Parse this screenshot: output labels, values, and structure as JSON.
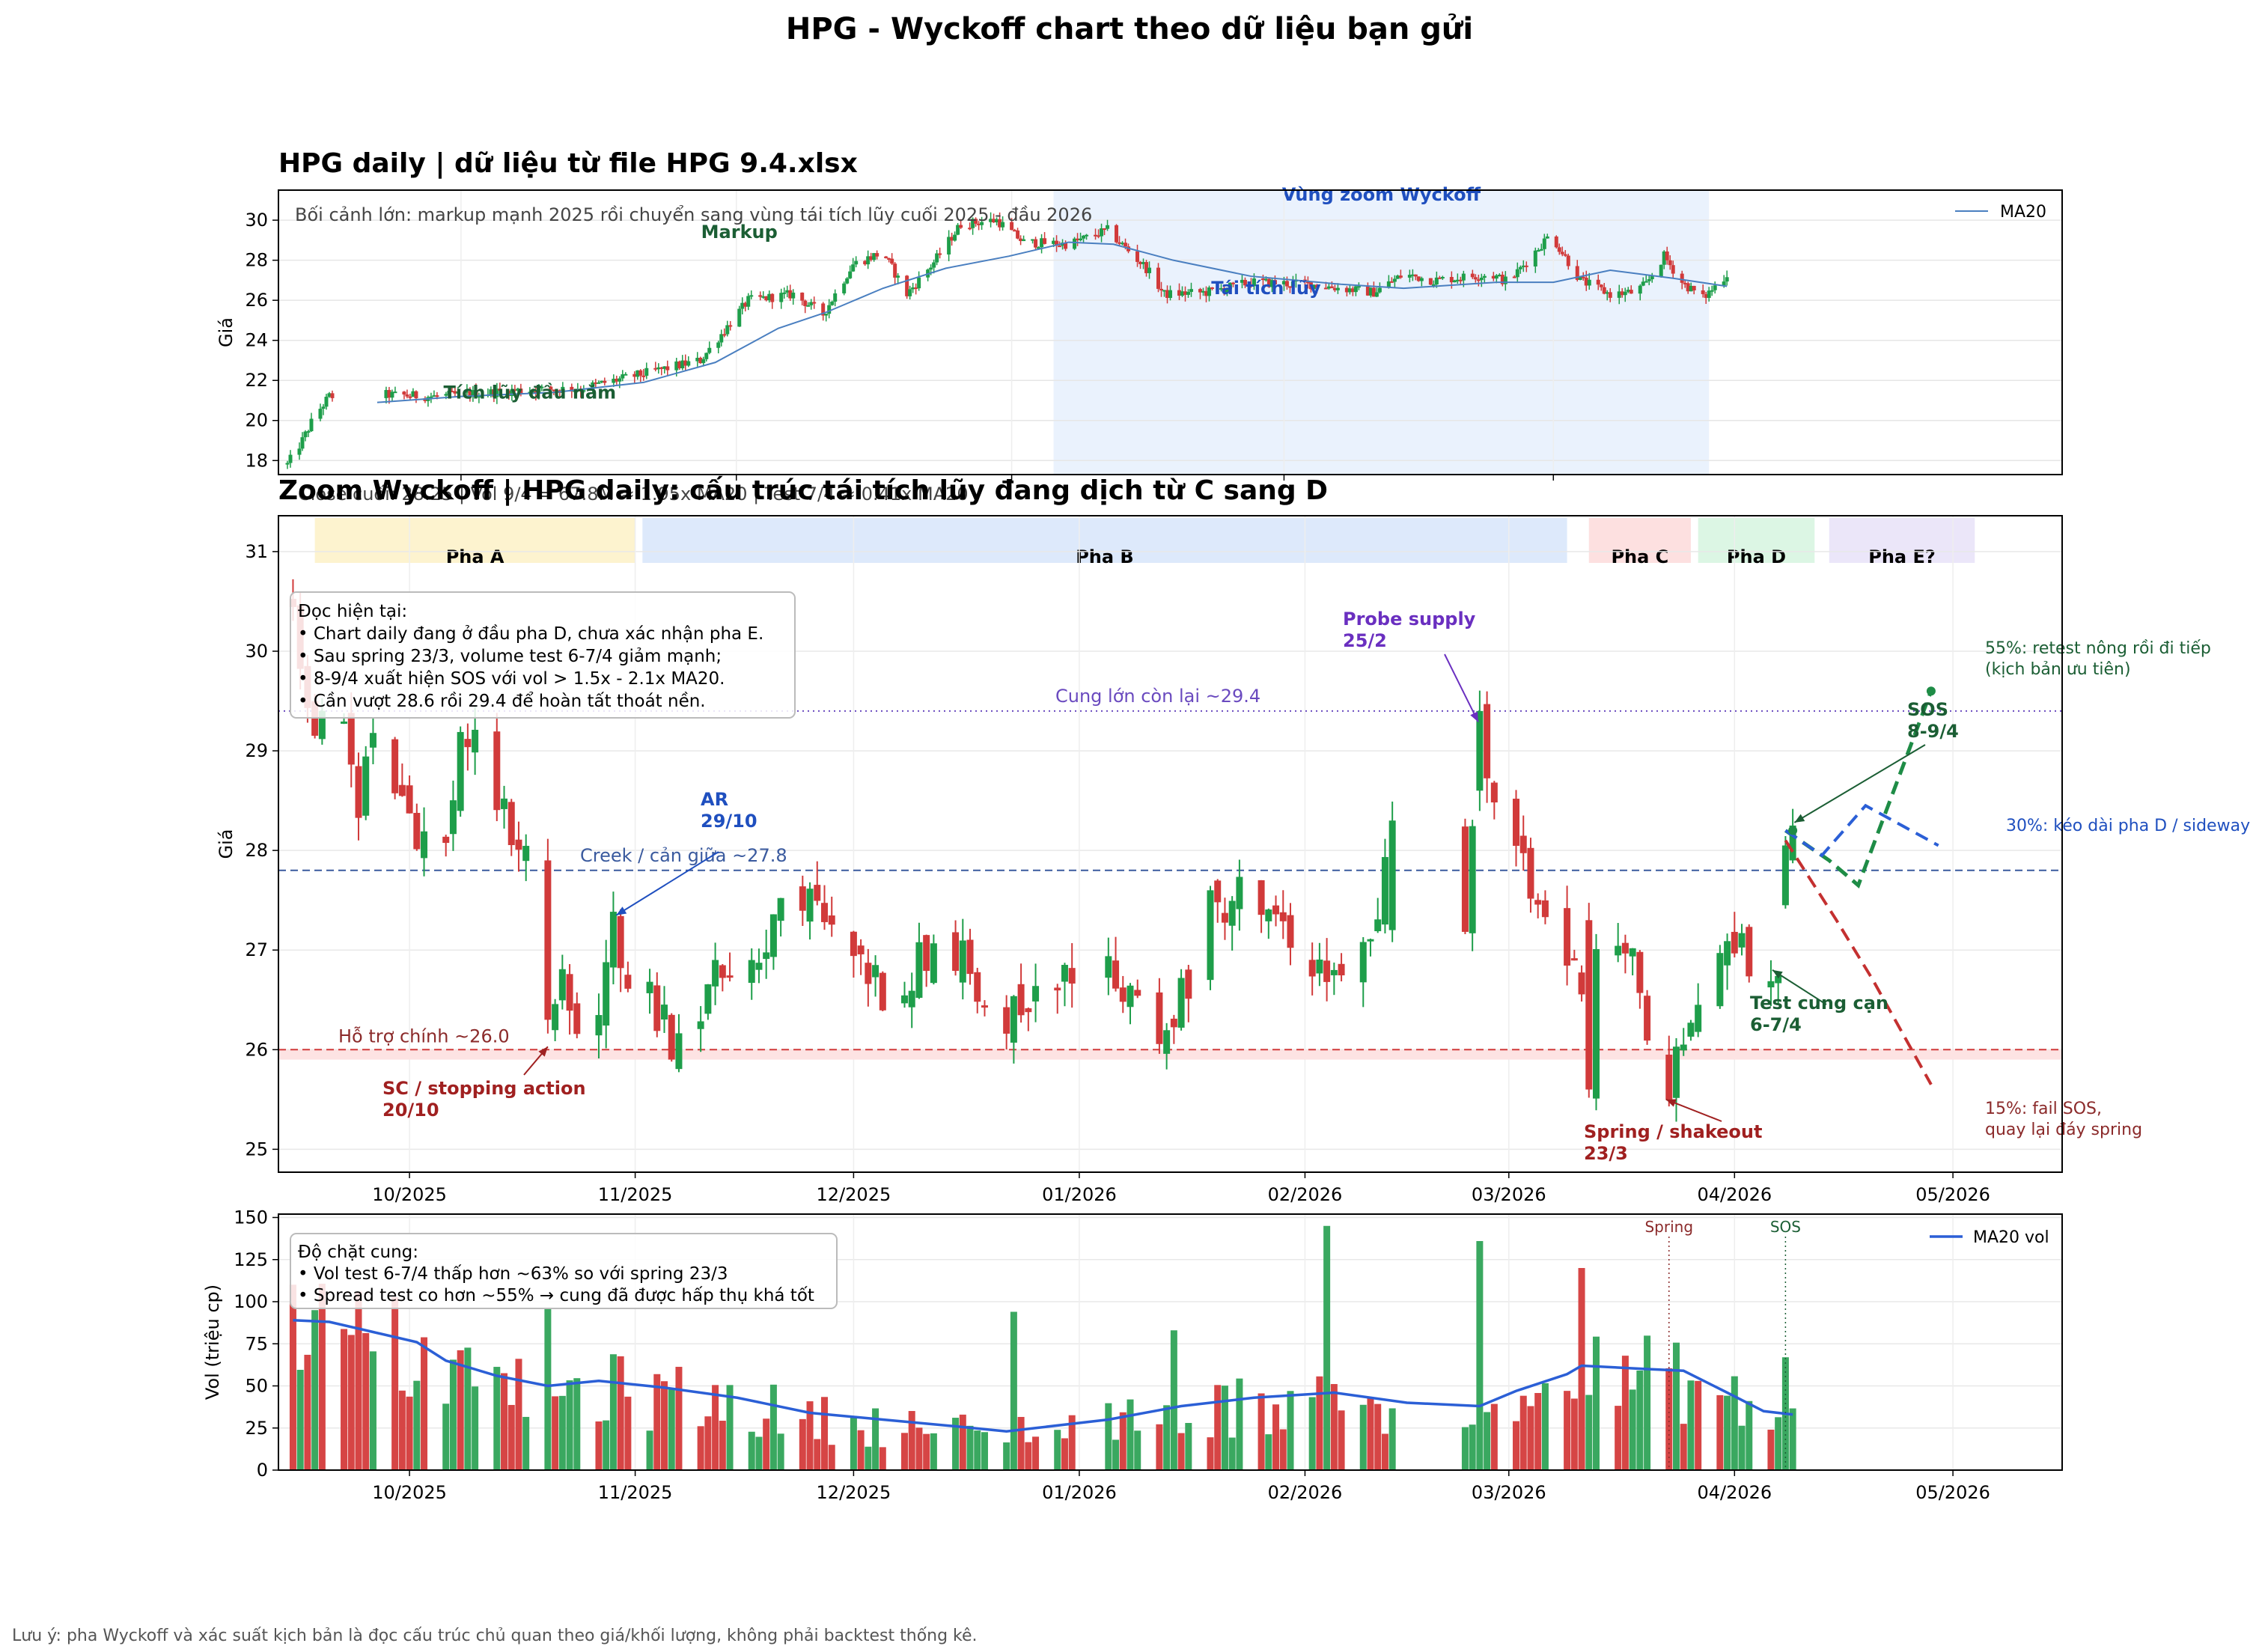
{
  "page": {
    "title": "HPG - Wyckoff chart theo dữ liệu bạn gửi",
    "footer": "Lưu ý: pha Wyckoff và xác suất kịch bản là đọc cấu trúc chủ quan theo giá/khối lượng, không phải backtest thống kê."
  },
  "colors": {
    "up": "#1e9e4a",
    "down": "#d13a3a",
    "ma": "#4a7fc0",
    "ma_vol": "#2b5fd6",
    "zoom_region": "#eaf2fd",
    "phase_a": "#fdf3cf",
    "phase_b": "#dde9fb",
    "phase_c": "#fde0e0",
    "phase_d": "#dcf6e4",
    "phase_e": "#ebe6f9",
    "support": "#d13a3a",
    "creek": "#3a5a9e",
    "supply": "#6a4abf",
    "green_label": "#1b5e34",
    "blue_label": "#1f4fbf",
    "red_label": "#a02020",
    "purple_label": "#6a2fc0"
  },
  "chart_data": [
    {
      "type": "candlestick",
      "id": "overview",
      "title": "HPG daily | dữ liệu từ file HPG 9.4.xlsx",
      "ylabel": "Giá",
      "ylim": [
        17.3,
        31.5
      ],
      "yticks": [
        18,
        20,
        22,
        24,
        26,
        28,
        30
      ],
      "x_range": [
        "2025-01-02",
        "2026-04-28"
      ],
      "grid": true,
      "legend": {
        "entries": [
          "MA20"
        ],
        "placement": "top-right"
      },
      "context_note": "Bối cảnh lớn: markup mạnh 2025 rồi chuyển sang vùng tái tích lũy cuối 2025 - đầu 2026",
      "zoom_region": {
        "label": "Vùng zoom Wyckoff",
        "start": "2025-09-15",
        "end": "2026-04-22"
      },
      "annotations": [
        {
          "text": "Tích lũy đầu năm",
          "date": "2025-03-24",
          "price": 21.1
        },
        {
          "text": "Markup",
          "date": "2025-06-02",
          "price": 29.1
        },
        {
          "text": "Tái tích lũy",
          "date": "2025-11-25",
          "price": 26.3
        }
      ],
      "path": [
        [
          "2025-01-02",
          17.8
        ],
        [
          "2025-01-07",
          19.0
        ],
        [
          "2025-01-11",
          20.2
        ],
        [
          "2025-01-16",
          21.2
        ],
        [
          "2025-02-01",
          21.3
        ],
        [
          "2025-02-20",
          21.2
        ],
        [
          "2025-03-20",
          21.5
        ],
        [
          "2025-04-10",
          21.6
        ],
        [
          "2025-04-30",
          22.3
        ],
        [
          "2025-05-20",
          23.0
        ],
        [
          "2025-05-28",
          24.5
        ],
        [
          "2025-06-05",
          26.0
        ],
        [
          "2025-06-20",
          26.3
        ],
        [
          "2025-06-30",
          25.3
        ],
        [
          "2025-07-10",
          27.8
        ],
        [
          "2025-07-20",
          28.4
        ],
        [
          "2025-07-28",
          26.3
        ],
        [
          "2025-08-06",
          27.9
        ],
        [
          "2025-08-15",
          29.8
        ],
        [
          "2025-08-27",
          30.0
        ],
        [
          "2025-09-05",
          28.9
        ],
        [
          "2025-09-20",
          28.8
        ],
        [
          "2025-10-03",
          29.5
        ],
        [
          "2025-10-16",
          27.6
        ],
        [
          "2025-10-22",
          26.3
        ],
        [
          "2025-11-05",
          26.4
        ],
        [
          "2025-11-20",
          26.9
        ],
        [
          "2025-12-10",
          26.8
        ],
        [
          "2025-12-20",
          26.6
        ],
        [
          "2025-12-31",
          26.4
        ],
        [
          "2026-01-10",
          27.3
        ],
        [
          "2026-01-20",
          27.0
        ],
        [
          "2026-02-08",
          27.3
        ],
        [
          "2026-02-14",
          26.9
        ],
        [
          "2026-02-28",
          29.3
        ],
        [
          "2026-03-10",
          27.0
        ],
        [
          "2026-03-20",
          26.3
        ],
        [
          "2026-03-28",
          26.4
        ],
        [
          "2026-04-01",
          26.8
        ],
        [
          "2026-04-07",
          28.2
        ],
        [
          "2026-04-13",
          26.9
        ],
        [
          "2026-04-20",
          26.1
        ],
        [
          "2026-04-28",
          27.3
        ]
      ],
      "ma_path": [
        [
          "2025-02-01",
          20.9
        ],
        [
          "2025-03-01",
          21.2
        ],
        [
          "2025-04-01",
          21.4
        ],
        [
          "2025-05-01",
          21.9
        ],
        [
          "2025-05-25",
          22.9
        ],
        [
          "2025-06-15",
          24.6
        ],
        [
          "2025-07-01",
          25.4
        ],
        [
          "2025-07-20",
          26.6
        ],
        [
          "2025-08-10",
          27.6
        ],
        [
          "2025-08-31",
          28.2
        ],
        [
          "2025-09-20",
          28.9
        ],
        [
          "2025-10-05",
          28.8
        ],
        [
          "2025-10-25",
          28.0
        ],
        [
          "2025-11-20",
          27.2
        ],
        [
          "2025-12-20",
          26.8
        ],
        [
          "2026-01-10",
          26.6
        ],
        [
          "2026-02-10",
          26.9
        ],
        [
          "2026-03-01",
          26.9
        ],
        [
          "2026-03-20",
          27.5
        ],
        [
          "2026-04-10",
          27.1
        ],
        [
          "2026-04-28",
          26.7
        ]
      ]
    },
    {
      "type": "candlestick",
      "id": "zoom",
      "title": "Zoom Wyckoff | HPG daily: cấu trúc tái tích lũy đang dịch từ C sang D",
      "subtitle": "Close cuối: 28.25 | Vol 9/4 = 67.8M ≈ 1.95x MA20 | Test 7/4 ≈ 0.41x MA20",
      "ylabel": "Giá",
      "ylim": [
        24.77,
        31.36
      ],
      "yticks": [
        25,
        26,
        27,
        28,
        29,
        30,
        31
      ],
      "xticks": [
        "10/2025",
        "11/2025",
        "12/2025",
        "01/2026",
        "02/2026",
        "03/2026",
        "04/2026",
        "05/2026"
      ],
      "xtick_dates": [
        "2025-10-01",
        "2025-11-01",
        "2025-12-01",
        "2026-01-01",
        "2026-02-01",
        "2026-03-01",
        "2026-04-01",
        "2026-05-01"
      ],
      "x_range": [
        "2025-09-13",
        "2026-05-04"
      ],
      "grid": true,
      "phases": [
        {
          "label": "Pha A",
          "start": "2025-09-18",
          "end": "2025-11-01"
        },
        {
          "label": "Pha B",
          "start": "2025-11-02",
          "end": "2026-03-09"
        },
        {
          "label": "Pha C",
          "start": "2026-03-12",
          "end": "2026-03-26"
        },
        {
          "label": "Pha D",
          "start": "2026-03-27",
          "end": "2026-04-12"
        },
        {
          "label": "Pha E?",
          "start": "2026-04-14",
          "end": "2026-05-04"
        }
      ],
      "levels": [
        {
          "label": "Hỗ trợ chính ~26.0",
          "price": 26.0,
          "kind": "support"
        },
        {
          "label": "Creek / cản giữa ~27.8",
          "price": 27.8,
          "kind": "creek"
        },
        {
          "label": "Cung lớn còn lại ~29.4",
          "price": 29.4,
          "kind": "supply"
        }
      ],
      "reading_box": [
        "Đọc hiện tại:",
        "• Chart daily đang ở đầu pha D, chưa xác nhận pha E.",
        "• Sau spring 23/3, volume test 6-7/4 giảm mạnh;",
        "• 8-9/4 xuất hiện SOS với vol > 1.5x - 2.1x MA20.",
        "• Cần vượt 28.6 rồi 29.4 để hoàn tất thoát nền."
      ],
      "events": [
        {
          "label": "SC / stopping action",
          "date_label": "20/10",
          "date": "2025-10-20",
          "price": 26.0
        },
        {
          "label": "AR",
          "date_label": "29/10",
          "date": "2025-10-29",
          "price": 27.35
        },
        {
          "label": "Probe supply",
          "date_label": "25/2",
          "date": "2026-02-25",
          "price": 29.32
        },
        {
          "label": "Spring / shakeout",
          "date_label": "23/3",
          "date": "2026-03-23",
          "price": 25.5
        },
        {
          "label": "Test cung cạn",
          "date_label": "6-7/4",
          "date": "2026-04-06",
          "price": 26.8
        },
        {
          "label": "SOS",
          "date_label": "8-9/4",
          "date": "2026-04-08",
          "price": 28.25
        }
      ],
      "scenarios": [
        {
          "label": "55%: retest nông rồi đi tiếp (kịch bản ưu tiên)",
          "probability": 55,
          "path": [
            [
              "2026-04-08",
              28.2
            ],
            [
              "2026-04-14",
              27.9
            ],
            [
              "2026-04-18",
              27.65
            ],
            [
              "2026-04-28",
              29.6
            ]
          ]
        },
        {
          "label": "30%: kéo dài pha D / sideway",
          "probability": 30,
          "path": [
            [
              "2026-04-08",
              28.2
            ],
            [
              "2026-04-13",
              27.95
            ],
            [
              "2026-04-19",
              28.45
            ],
            [
              "2026-04-29",
              28.05
            ]
          ]
        },
        {
          "label": "15%: fail SOS, quay lại đáy spring",
          "probability": 15,
          "path": [
            [
              "2026-04-08",
              28.1
            ],
            [
              "2026-04-15",
              27.3
            ],
            [
              "2026-04-20",
              26.7
            ],
            [
              "2026-04-28",
              25.65
            ]
          ]
        }
      ],
      "path": [
        [
          "2025-09-15",
          30.5
        ],
        [
          "2025-09-17",
          29.3
        ],
        [
          "2025-09-22",
          29.1
        ],
        [
          "2025-09-24",
          28.5
        ],
        [
          "2025-09-26",
          29.2
        ],
        [
          "2025-09-30",
          28.6
        ],
        [
          "2025-10-02",
          28.2
        ],
        [
          "2025-10-06",
          28.0
        ],
        [
          "2025-10-08",
          29.2
        ],
        [
          "2025-10-10",
          29.0
        ],
        [
          "2025-10-13",
          28.5
        ],
        [
          "2025-10-15",
          28.2
        ],
        [
          "2025-10-17",
          28.0
        ],
        [
          "2025-10-20",
          26.4
        ],
        [
          "2025-10-22",
          26.6
        ],
        [
          "2025-10-24",
          26.2
        ],
        [
          "2025-10-27",
          26.5
        ],
        [
          "2025-10-29",
          27.2
        ],
        [
          "2025-10-31",
          26.8
        ],
        [
          "2025-11-04",
          26.4
        ],
        [
          "2025-11-06",
          26.1
        ],
        [
          "2025-11-10",
          26.5
        ],
        [
          "2025-11-13",
          26.8
        ],
        [
          "2025-11-17",
          26.9
        ],
        [
          "2025-11-20",
          27.3
        ],
        [
          "2025-11-24",
          27.5
        ],
        [
          "2025-11-28",
          27.2
        ],
        [
          "2025-12-03",
          26.8
        ],
        [
          "2025-12-06",
          26.5
        ],
        [
          "2025-12-10",
          26.9
        ],
        [
          "2025-12-14",
          27.1
        ],
        [
          "2025-12-18",
          26.7
        ],
        [
          "2025-12-22",
          26.3
        ],
        [
          "2025-12-27",
          26.7
        ],
        [
          "2026-01-02",
          26.8
        ],
        [
          "2026-01-06",
          26.7
        ],
        [
          "2026-01-09",
          26.5
        ],
        [
          "2026-01-12",
          26.1
        ],
        [
          "2026-01-15",
          26.5
        ],
        [
          "2026-01-19",
          27.3
        ],
        [
          "2026-01-23",
          27.6
        ],
        [
          "2026-01-28",
          27.2
        ],
        [
          "2026-02-02",
          26.9
        ],
        [
          "2026-02-06",
          26.6
        ],
        [
          "2026-02-10",
          27.0
        ],
        [
          "2026-02-13",
          28.1
        ],
        [
          "2026-02-17",
          26.9
        ],
        [
          "2026-02-20",
          27.1
        ],
        [
          "2026-02-23",
          27.4
        ],
        [
          "2026-02-25",
          29.3
        ],
        [
          "2026-02-27",
          28.5
        ],
        [
          "2026-03-02",
          28.0
        ],
        [
          "2026-03-04",
          27.5
        ],
        [
          "2026-03-06",
          27.3
        ],
        [
          "2026-03-09",
          26.9
        ],
        [
          "2026-03-11",
          26.7
        ],
        [
          "2026-03-13",
          26.9
        ],
        [
          "2026-03-16",
          27.1
        ],
        [
          "2026-03-18",
          26.8
        ],
        [
          "2026-03-20",
          26.2
        ],
        [
          "2026-03-23",
          25.55
        ],
        [
          "2026-03-25",
          26.1
        ],
        [
          "2026-03-27",
          26.5
        ],
        [
          "2026-03-31",
          26.9
        ],
        [
          "2026-04-02",
          27.2
        ],
        [
          "2026-04-03",
          26.9
        ],
        [
          "2026-04-06",
          26.85
        ],
        [
          "2026-04-07",
          26.8
        ],
        [
          "2026-04-08",
          27.8
        ],
        [
          "2026-04-09",
          28.25
        ]
      ]
    },
    {
      "type": "bar",
      "id": "volume",
      "title": "",
      "ylabel": "Vol (triệu cp)",
      "ylim": [
        0,
        152
      ],
      "yticks": [
        0,
        25,
        50,
        75,
        100,
        125,
        150
      ],
      "xticks": [
        "10/2025",
        "11/2025",
        "12/2025",
        "01/2026",
        "02/2026",
        "03/2026",
        "04/2026",
        "05/2026"
      ],
      "legend": {
        "entries": [
          "MA20 vol"
        ],
        "placement": "top-right"
      },
      "note_box": [
        "Độ chặt cung:",
        "• Vol test 6-7/4 thấp hơn ~63% so với spring 23/3",
        "• Spread test co hơn ~55% → cung đã được hấp thụ khá tốt"
      ],
      "markers": [
        {
          "label": "Spring",
          "date": "2026-03-23"
        },
        {
          "label": "SOS",
          "date": "2026-04-08"
        }
      ],
      "spikes": [
        [
          "2025-09-18",
          95
        ],
        [
          "2025-10-20",
          96
        ],
        [
          "2025-12-23",
          94
        ],
        [
          "2026-01-14",
          83
        ],
        [
          "2026-02-04",
          145
        ],
        [
          "2026-02-25",
          136
        ],
        [
          "2026-03-11",
          120
        ],
        [
          "2026-04-08",
          67
        ]
      ],
      "ma_path": [
        [
          "2025-09-15",
          89
        ],
        [
          "2025-09-20",
          88
        ],
        [
          "2025-09-26",
          82
        ],
        [
          "2025-10-02",
          76
        ],
        [
          "2025-10-06",
          65
        ],
        [
          "2025-10-13",
          56
        ],
        [
          "2025-10-20",
          50
        ],
        [
          "2025-10-27",
          53
        ],
        [
          "2025-11-05",
          49
        ],
        [
          "2025-11-15",
          43
        ],
        [
          "2025-11-25",
          34
        ],
        [
          "2025-12-05",
          30
        ],
        [
          "2025-12-15",
          26
        ],
        [
          "2025-12-22",
          23
        ],
        [
          "2026-01-05",
          30
        ],
        [
          "2026-01-15",
          38
        ],
        [
          "2026-01-25",
          43
        ],
        [
          "2026-02-05",
          46
        ],
        [
          "2026-02-15",
          40
        ],
        [
          "2026-02-25",
          38
        ],
        [
          "2026-03-02",
          47
        ],
        [
          "2026-03-09",
          57
        ],
        [
          "2026-03-11",
          62
        ],
        [
          "2026-03-20",
          60
        ],
        [
          "2026-03-25",
          59
        ],
        [
          "2026-03-31",
          46
        ],
        [
          "2026-04-05",
          35
        ],
        [
          "2026-04-09",
          33
        ]
      ]
    }
  ]
}
